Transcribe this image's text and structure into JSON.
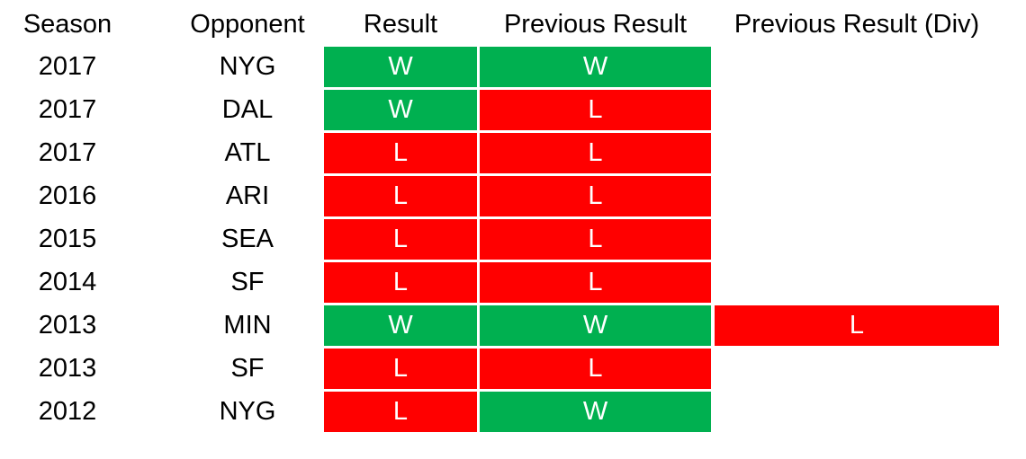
{
  "table": {
    "headers": [
      "Season",
      "Opponent",
      "Result",
      "Previous Result",
      "Previous Result (Div)"
    ],
    "rows": [
      [
        "2017",
        "NYG",
        "W",
        "W",
        null
      ],
      [
        "2017",
        "DAL",
        "W",
        "L",
        null
      ],
      [
        "2017",
        "ATL",
        "L",
        "L",
        null
      ],
      [
        "2016",
        "ARI",
        "L",
        "L",
        null
      ],
      [
        "2015",
        "SEA",
        "L",
        "L",
        null
      ],
      [
        "2014",
        "SF",
        "L",
        "L",
        null
      ],
      [
        "2013",
        "MIN",
        "W",
        "W",
        "L"
      ],
      [
        "2013",
        "SF",
        "L",
        "L",
        null
      ],
      [
        "2012",
        "NYG",
        "L",
        "W",
        null
      ]
    ],
    "cell_colors": {
      "W": "#00b050",
      "L": "#ff0000"
    }
  }
}
